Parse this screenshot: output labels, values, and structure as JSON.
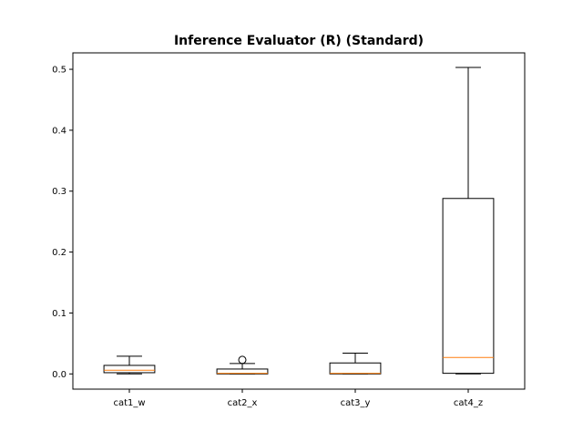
{
  "chart_data": {
    "type": "boxplot",
    "title": "Inference Evaluator (R) (Standard)",
    "xlabel": "",
    "ylabel": "",
    "ylim": [
      -0.025,
      0.527
    ],
    "yticks": [
      "0.0",
      "0.1",
      "0.2",
      "0.3",
      "0.4",
      "0.5"
    ],
    "grid": false,
    "categories": [
      "cat1_w",
      "cat2_x",
      "cat3_y",
      "cat4_z"
    ],
    "boxes": [
      {
        "category": "cat1_w",
        "whisker_low": 0.0,
        "q1": 0.002,
        "median": 0.006,
        "q3": 0.014,
        "whisker_high": 0.029,
        "outliers": []
      },
      {
        "category": "cat2_x",
        "whisker_low": 0.0,
        "q1": 0.0,
        "median": 0.001,
        "q3": 0.008,
        "whisker_high": 0.017,
        "outliers": [
          0.023
        ]
      },
      {
        "category": "cat3_y",
        "whisker_low": 0.0,
        "q1": 0.0,
        "median": 0.001,
        "q3": 0.018,
        "whisker_high": 0.034,
        "outliers": []
      },
      {
        "category": "cat4_z",
        "whisker_low": 0.0,
        "q1": 0.001,
        "median": 0.027,
        "q3": 0.288,
        "whisker_high": 0.503,
        "outliers": []
      }
    ],
    "colors": {
      "box": "#000000",
      "median": "#ff7f0e"
    }
  }
}
